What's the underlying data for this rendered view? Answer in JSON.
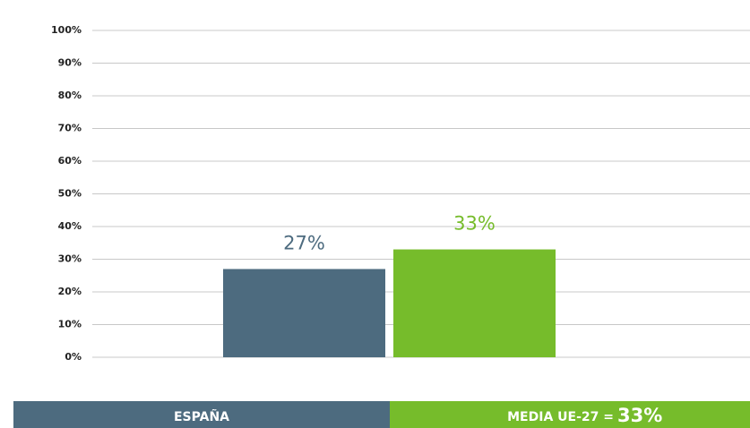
{
  "chart_data": {
    "type": "bar",
    "categories": [
      null,
      null
    ],
    "values": [
      27,
      33
    ],
    "value_labels": [
      "27%",
      "33%"
    ],
    "colors": [
      "#4d6b7f",
      "#76bc2b"
    ],
    "ylim": [
      0,
      100
    ],
    "yticks": [
      {
        "value": 0,
        "label": "0%"
      },
      {
        "value": 10,
        "label": "10%"
      },
      {
        "value": 20,
        "label": "20%"
      },
      {
        "value": 30,
        "label": "30%"
      },
      {
        "value": 40,
        "label": "40%"
      },
      {
        "value": 50,
        "label": "50%"
      },
      {
        "value": 60,
        "label": "60%"
      },
      {
        "value": 70,
        "label": "70%"
      },
      {
        "value": 80,
        "label": "80%"
      },
      {
        "value": 90,
        "label": "90%"
      },
      {
        "value": 100,
        "label": "100%"
      }
    ],
    "grid": true,
    "legend": [
      "ESPAÑA",
      "MEDIA UE-27 ="
    ]
  }
}
